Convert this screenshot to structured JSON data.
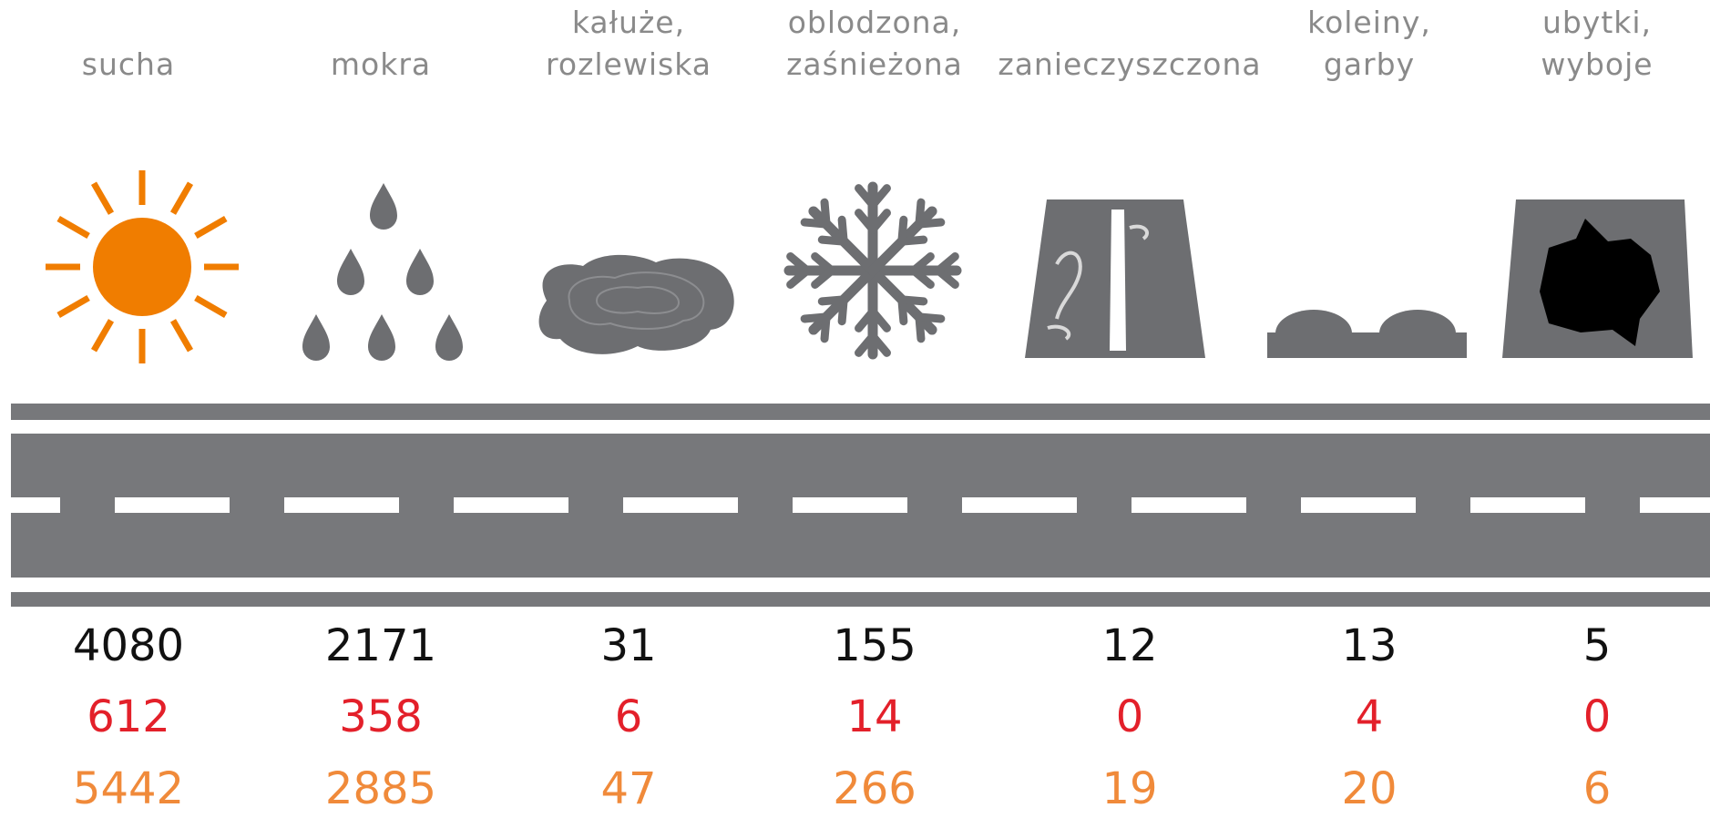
{
  "labels": [
    [
      "sucha"
    ],
    [
      "mokra"
    ],
    [
      "kałuże,",
      "rozlewiska"
    ],
    [
      "oblodzona,",
      "zaśnieżona"
    ],
    [
      "zanieczyszczona"
    ],
    [
      "koleiny,",
      "garby"
    ],
    [
      "ubytki,",
      "wyboje"
    ]
  ],
  "rows": [
    [
      4080,
      2171,
      31,
      155,
      12,
      13,
      5
    ],
    [
      612,
      358,
      6,
      14,
      0,
      4,
      0
    ],
    [
      5442,
      2885,
      47,
      266,
      19,
      20,
      6
    ]
  ]
}
